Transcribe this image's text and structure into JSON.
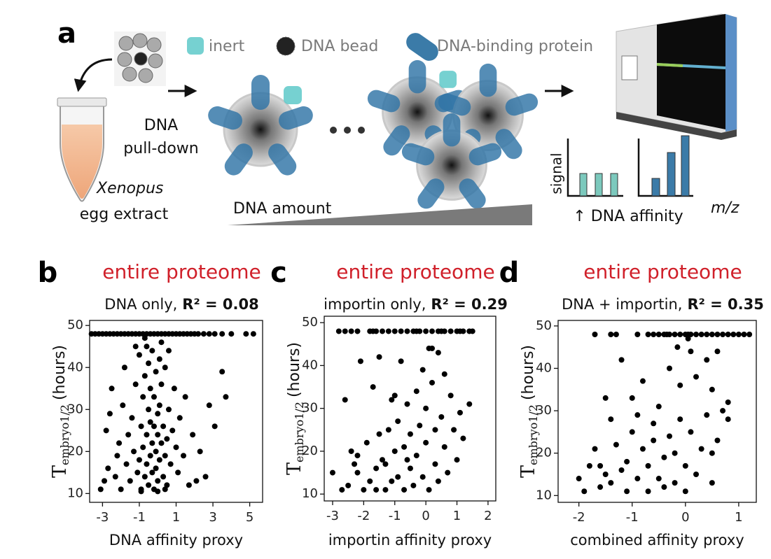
{
  "diagram": {
    "panel_label": "a",
    "legend": [
      "inert",
      "DNA bead",
      "DNA-binding protein"
    ],
    "step": [
      "DNA",
      "pull-down"
    ],
    "organism": "Xenopus",
    "sample": "egg extract",
    "gradient_label": "DNA amount",
    "signal_axis": "signal",
    "affinity_label": "↑ DNA affinity",
    "mz_label": "m/z"
  },
  "chart_data": [
    {
      "type": "scatter",
      "panel_label": "b",
      "title": "entire proteome",
      "subtitle": "DNA only,",
      "r2_label": "R² = 0.08",
      "ylabel_main": "T",
      "ylabel_sub": "embryo1/2",
      "ylabel_rest": "(hours)",
      "xlabel": "DNA affinity proxy",
      "color": "#000000",
      "xlim": [
        -3.7,
        5.7
      ],
      "ylim": [
        7.9,
        51.2
      ],
      "xticks": [
        -3,
        -1,
        1,
        3,
        5
      ],
      "yticks": [
        10,
        20,
        30,
        40,
        50
      ],
      "x": [
        -3.6,
        -3.4,
        -3.2,
        -3.0,
        -2.8,
        -2.6,
        -2.4,
        -2.2,
        -2.0,
        -1.8,
        -1.6,
        -1.4,
        -1.2,
        -1.0,
        -0.8,
        -0.6,
        -0.4,
        -0.2,
        0,
        0.2,
        0.4,
        0.6,
        0.8,
        1.0,
        1.2,
        1.4,
        1.6,
        1.8,
        2.0,
        2.2,
        2.5,
        2.8,
        3.1,
        3.5,
        4.0,
        4.8,
        5.2,
        -3.1,
        -2.9,
        -2.7,
        -2.8,
        -2.6,
        -2.5,
        -2.3,
        -2.2,
        -2.1,
        -2.0,
        -1.9,
        -1.8,
        -1.7,
        -1.6,
        -1.5,
        -1.4,
        -1.3,
        -1.2,
        -1.1,
        -1.0,
        -1.0,
        -0.9,
        -0.9,
        -0.8,
        -0.8,
        -0.7,
        -0.7,
        -0.6,
        -0.6,
        -0.6,
        -0.5,
        -0.5,
        -0.5,
        -0.4,
        -0.4,
        -0.4,
        -0.3,
        -0.3,
        -0.3,
        -0.2,
        -0.2,
        -0.2,
        -0.1,
        -0.1,
        -0.1,
        0,
        0,
        0,
        0.1,
        0.1,
        0.1,
        0.2,
        0.2,
        0.3,
        0.3,
        0.4,
        0.4,
        0.5,
        0.5,
        0.6,
        0.7,
        0.8,
        0.9,
        1.0,
        1.1,
        1.2,
        1.4,
        1.5,
        1.7,
        1.9,
        2.1,
        2.3,
        2.6,
        2.8,
        3.1,
        3.5,
        3.7,
        -0.7,
        0.2,
        -1.2,
        0.6,
        -0.9,
        0,
        0.4
      ],
      "values": [
        48,
        48,
        48,
        48,
        48,
        48,
        48,
        48,
        48,
        48,
        48,
        48,
        48,
        48,
        48,
        48,
        48,
        48,
        48,
        48,
        48,
        48,
        48,
        48,
        48,
        48,
        48,
        48,
        48,
        48,
        48,
        48,
        48,
        48,
        48,
        48,
        48,
        11,
        13,
        16,
        25,
        29,
        35,
        14,
        19,
        22,
        11,
        31,
        40,
        17,
        24,
        13,
        28,
        20,
        36,
        15,
        43,
        18,
        26,
        11,
        33,
        21,
        38,
        14,
        45,
        24,
        17,
        30,
        12,
        41,
        19,
        27,
        35,
        22,
        15,
        44,
        26,
        11,
        33,
        20,
        39,
        16,
        24,
        29,
        13,
        42,
        18,
        31,
        22,
        36,
        14,
        26,
        19,
        40,
        23,
        12,
        30,
        17,
        25,
        35,
        21,
        15,
        28,
        19,
        33,
        12,
        24,
        13,
        20,
        14,
        31,
        26,
        39,
        33,
        47,
        46,
        45,
        44,
        10.5,
        10.5,
        11
      ]
    },
    {
      "type": "scatter",
      "panel_label": "c",
      "title": "entire proteome",
      "subtitle": "importin only,",
      "r2_label": "R² = 0.29",
      "ylabel_main": "T",
      "ylabel_sub": "embryo1/2",
      "ylabel_rest": "(hours)",
      "xlabel": "importin affinity proxy",
      "color": "#000000",
      "xlim": [
        -3.27,
        2.25
      ],
      "ylim": [
        8.4,
        51.5
      ],
      "xticks": [
        -3,
        -2,
        -1,
        0,
        1,
        2
      ],
      "yticks": [
        10,
        20,
        30,
        40,
        50
      ],
      "x": [
        -2.8,
        -2.6,
        -2.4,
        -2.2,
        -1.8,
        -1.6,
        -1.4,
        -1.2,
        -1.0,
        -0.8,
        -0.6,
        -0.4,
        -0.2,
        0,
        0.2,
        0.4,
        0.6,
        0.8,
        1.0,
        1.2,
        1.4,
        1.5,
        -1.7,
        -0.3,
        0.5,
        1.1,
        -3.0,
        -2.7,
        -2.5,
        -2.4,
        -2.3,
        -2.2,
        -2.0,
        -2.1,
        -1.9,
        -1.8,
        -1.7,
        -1.6,
        -1.5,
        -1.5,
        -1.4,
        -1.3,
        -1.3,
        -1.2,
        -1.1,
        -1.0,
        -1.0,
        -0.9,
        -0.9,
        -0.8,
        -0.7,
        -0.7,
        -0.6,
        -0.5,
        -0.5,
        -0.4,
        -0.3,
        -0.3,
        -0.2,
        -0.1,
        -0.1,
        0,
        0,
        0.1,
        0.1,
        0.2,
        0.3,
        0.3,
        0.4,
        0.4,
        0.5,
        0.6,
        0.6,
        0.7,
        0.8,
        0.9,
        1.0,
        1.1,
        1.2,
        1.4,
        -2.6,
        -1.1,
        0.2,
        -2.2,
        -1.6,
        -0.6
      ],
      "values": [
        48,
        48,
        48,
        48,
        48,
        48,
        48,
        48,
        48,
        48,
        48,
        48,
        48,
        48,
        48,
        48,
        48,
        48,
        48,
        48,
        48,
        48,
        48,
        48,
        48,
        48,
        15,
        11,
        12,
        20,
        17,
        19,
        11,
        41,
        22,
        13,
        35,
        16,
        24,
        42,
        18,
        11,
        17,
        25,
        13,
        33,
        20,
        14,
        27,
        41,
        11,
        21,
        31,
        16,
        24,
        12,
        34,
        19,
        26,
        39,
        14,
        22,
        30,
        11,
        44,
        36,
        25,
        17,
        43,
        13,
        28,
        21,
        38,
        15,
        33,
        25,
        18,
        29,
        23,
        31,
        32,
        32,
        44,
        15,
        11,
        18
      ]
    },
    {
      "type": "scatter",
      "panel_label": "d",
      "title": "entire proteome",
      "subtitle": "DNA + importin,",
      "r2_label": "R² = 0.35",
      "ylabel_main": "T",
      "ylabel_sub": "embryo1/2",
      "ylabel_rest": "(hours)",
      "xlabel": "combined affinity proxy",
      "color": "#000000",
      "xlim": [
        -2.39,
        1.33
      ],
      "ylim": [
        8.4,
        51.3
      ],
      "xticks": [
        -2,
        -1,
        0,
        1
      ],
      "yticks": [
        10,
        20,
        30,
        40,
        50
      ],
      "x": [
        -1.7,
        -1.4,
        -1.3,
        -0.9,
        -0.7,
        -0.6,
        -0.5,
        -0.4,
        -0.3,
        -0.2,
        -0.1,
        0,
        0.1,
        0.2,
        0.3,
        0.4,
        0.5,
        0.6,
        0.7,
        0.8,
        0.9,
        1.0,
        1.1,
        1.2,
        -0.35,
        0.05,
        -2.0,
        -1.9,
        -1.8,
        -1.7,
        -1.6,
        -1.6,
        -1.5,
        -1.4,
        -1.4,
        -1.3,
        -1.2,
        -1.2,
        -1.1,
        -1.1,
        -1.0,
        -1.0,
        -0.9,
        -0.8,
        -0.8,
        -0.7,
        -0.7,
        -0.6,
        -0.6,
        -0.5,
        -0.5,
        -0.4,
        -0.4,
        -0.3,
        -0.3,
        -0.2,
        -0.2,
        -0.1,
        -0.1,
        0,
        0,
        0.1,
        0.1,
        0.2,
        0.2,
        0.3,
        0.4,
        0.4,
        0.5,
        0.5,
        0.6,
        0.6,
        0.7,
        0.8,
        0.8,
        0.5,
        -0.9,
        -1.5,
        0.05,
        -0.15
      ],
      "values": [
        48,
        48,
        48,
        48,
        48,
        48,
        48,
        48,
        48,
        48,
        48,
        48,
        48,
        48,
        48,
        48,
        48,
        48,
        48,
        48,
        48,
        48,
        48,
        48,
        48,
        48,
        14,
        11,
        17,
        21,
        12,
        17,
        15,
        28,
        13,
        22,
        16,
        42,
        11,
        18,
        25,
        33,
        14,
        21,
        37,
        11,
        17,
        27,
        23,
        14,
        31,
        19,
        12,
        24,
        40,
        13,
        20,
        28,
        36,
        17,
        11,
        25,
        44,
        15,
        38,
        21,
        29,
        42,
        13,
        35,
        23,
        44,
        30,
        32,
        28,
        20,
        29,
        33,
        47,
        45
      ]
    }
  ]
}
